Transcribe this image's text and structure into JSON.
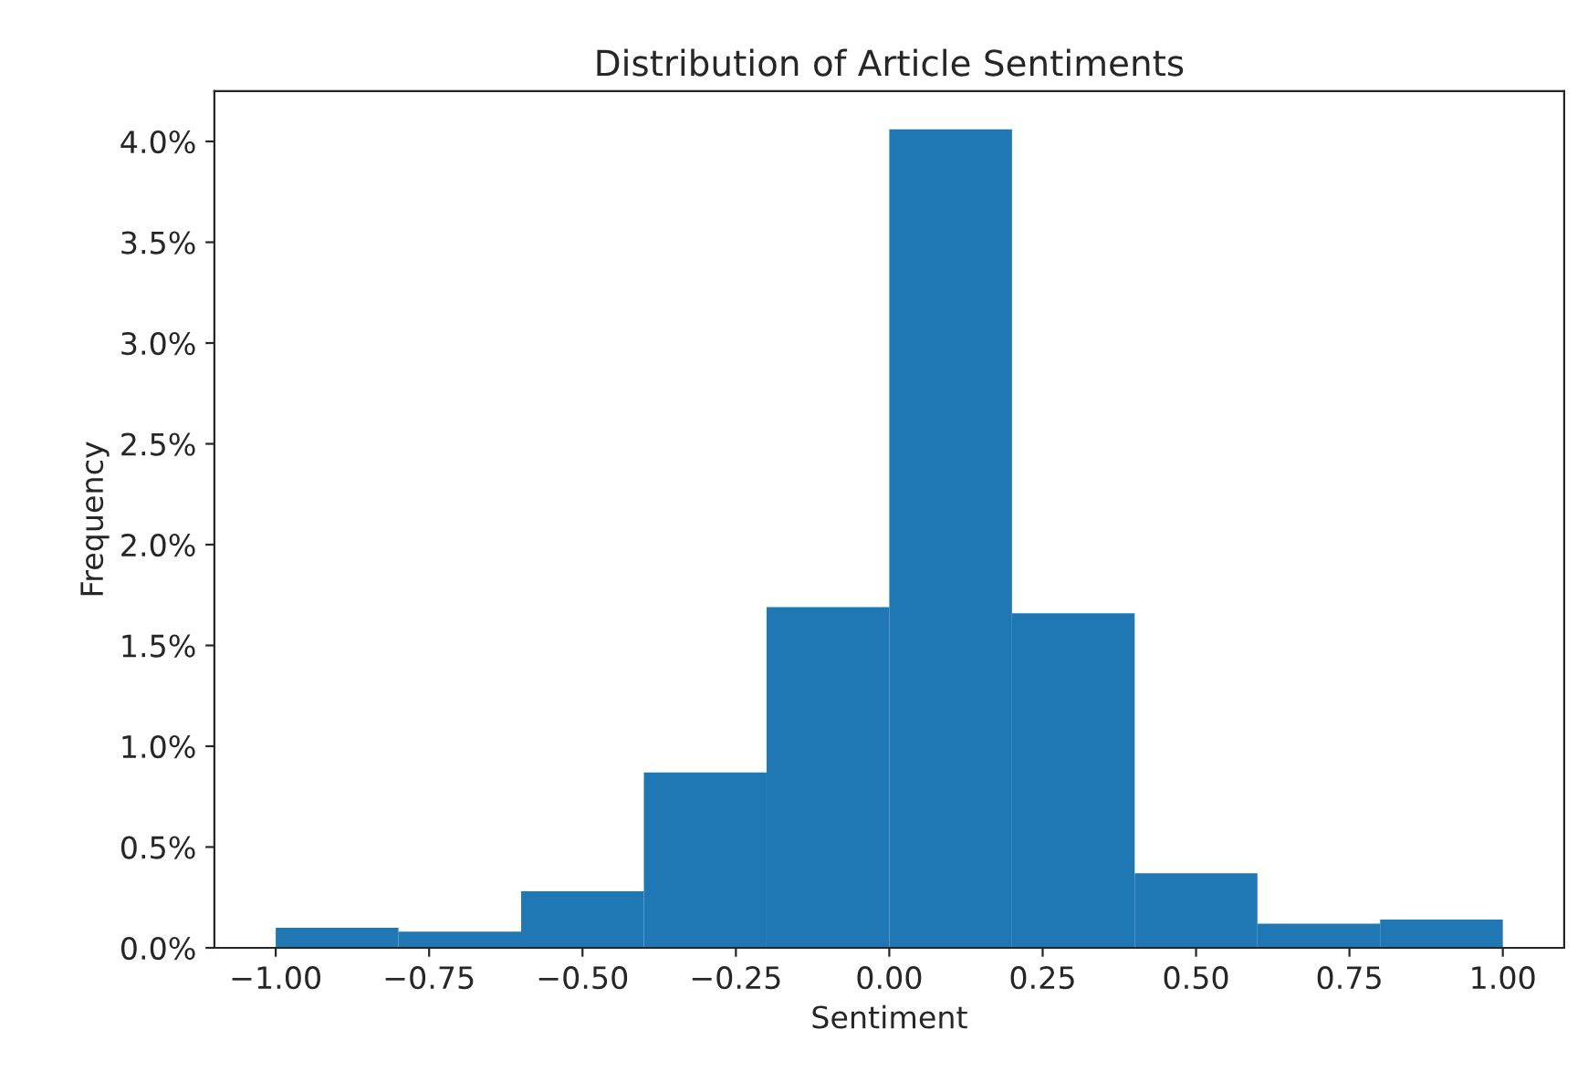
{
  "chart_data": {
    "type": "histogram",
    "title": "Distribution of Article Sentiments",
    "xlabel": "Sentiment",
    "ylabel": "Frequency",
    "bins": [
      -1.0,
      -0.8,
      -0.6,
      -0.4,
      -0.2,
      0.0,
      0.2,
      0.4,
      0.6,
      0.8,
      1.0
    ],
    "values": [
      0.1,
      0.08,
      0.28,
      0.87,
      1.69,
      4.06,
      1.66,
      0.37,
      0.12,
      0.14
    ],
    "color": "#1f77b4",
    "xlim": [
      -1.1,
      1.1
    ],
    "xticks": [
      {
        "value": -1.0,
        "label": "−1.00"
      },
      {
        "value": -0.75,
        "label": "−0.75"
      },
      {
        "value": -0.5,
        "label": "−0.50"
      },
      {
        "value": -0.25,
        "label": "−0.25"
      },
      {
        "value": 0.0,
        "label": "0.00"
      },
      {
        "value": 0.25,
        "label": "0.25"
      },
      {
        "value": 0.5,
        "label": "0.50"
      },
      {
        "value": 0.75,
        "label": "0.75"
      },
      {
        "value": 1.0,
        "label": "1.00"
      }
    ],
    "ylim": [
      0,
      4.25
    ],
    "yticks": [
      {
        "value": 0,
        "label": "0.0%"
      },
      {
        "value": 0.5,
        "label": "0.5%"
      },
      {
        "value": 1.0,
        "label": "1.0%"
      },
      {
        "value": 1.5,
        "label": "1.5%"
      },
      {
        "value": 2.0,
        "label": "2.0%"
      },
      {
        "value": 2.5,
        "label": "2.5%"
      },
      {
        "value": 3.0,
        "label": "3.0%"
      },
      {
        "value": 3.5,
        "label": "3.5%"
      },
      {
        "value": 4.0,
        "label": "4.0%"
      }
    ],
    "grid": false
  }
}
